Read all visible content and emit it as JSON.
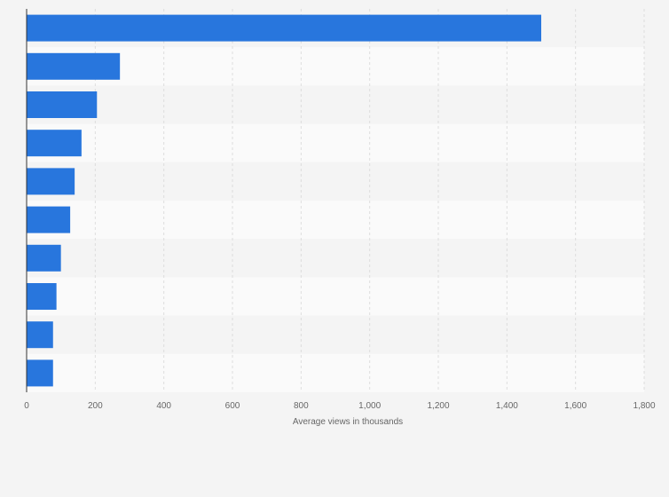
{
  "chart_data": {
    "type": "bar",
    "orientation": "horizontal",
    "title": "",
    "xlabel": "Average views in thousands",
    "ylabel": "",
    "xlim": [
      0,
      1800
    ],
    "x_ticks": [
      0,
      200,
      400,
      600,
      800,
      1000,
      1200,
      1400,
      1600,
      1800
    ],
    "x_tick_labels": [
      "0",
      "200",
      "400",
      "600",
      "800",
      "1,000",
      "1,200",
      "1,400",
      "1,600",
      "1,800"
    ],
    "categories": [
      "",
      "",
      "",
      "",
      "",
      "",
      "",
      "",
      "",
      ""
    ],
    "values": [
      1500,
      272,
      205,
      160,
      140,
      127,
      100,
      87,
      77,
      77
    ],
    "grid": true,
    "legend": "none",
    "colors": {
      "bar": "#2876dd",
      "background": "#f4f4f4",
      "band_light": "#fafafa",
      "band_dark": "#f4f4f4",
      "grid": "#dddddd",
      "axis": "#333333",
      "text": "#666666"
    }
  }
}
